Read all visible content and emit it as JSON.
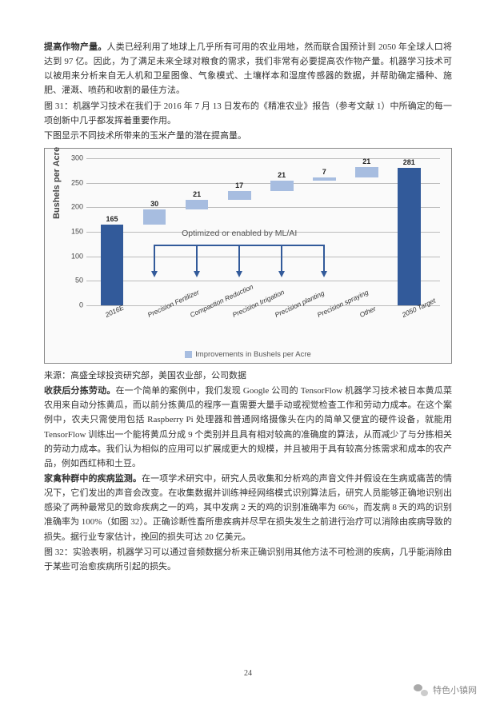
{
  "paragraphs": {
    "p1_bold": "提高作物产量。",
    "p1": "人类已经利用了地球上几乎所有可用的农业用地，然而联合国预计到 2050 年全球人口将达到 97 亿。因此，为了满足未来全球对粮食的需求，我们非常有必要提高农作物产量。机器学习技术可以被用来分析来自无人机和卫星图像、气象模式、土壤样本和湿度传感器的数据，并帮助确定播种、施肥、灌溉、喷药和收割的最佳方法。",
    "p2": "图 31：机器学习技术在我们于 2016 年 7 月 13 日发布的《精准农业》报告（参考文献 1）中所确定的每一项创新中几乎都发挥着重要作用。",
    "p3": "下图显示不同技术所带来的玉米产量的潜在提高量。",
    "source": "来源：高盛全球投资研究部，美国农业部，公司数据",
    "p4_bold": "收获后分拣劳动。",
    "p4": "在一个简单的案例中，我们发现 Google 公司的 TensorFlow 机器学习技术被日本黄瓜菜农用来自动分拣黄瓜，而以前分拣黄瓜的程序一直需要大量手动或视觉检查工作和劳动力成本。在这个案例中，农夫只需使用包括 Raspberry Pi 处理器和普通网络摄像头在内的简单又便宜的硬件设备，就能用 TensorFlow 训练出一个能将黄瓜分成 9 个类别并且具有相对较高的准确度的算法，从而减少了与分拣相关的劳动力成本。我们认为相似的应用可以扩展成更大的规模，并且被用于具有较高分拣需求和成本的农产品，例如西红柿和土豆。",
    "p5_bold": "家禽种群中的疾病监测。",
    "p5": "在一项学术研究中，研究人员收集和分析鸡的声音文件并假设在生病或痛苦的情况下，它们发出的声音会改变。在收集数据并训练神经网络模式识别算法后，研究人员能够正确地识别出感染了两种最常见的致命疾病之一的鸡，其中发病 2 天的鸡的识别准确率为 66%，而发病 8 天的鸡的识别准确率为 100%（如图 32）。正确诊断性畜所患疾病并尽早在损失发生之前进行治疗可以消除由疾病导致的损失。据行业专家估计，挽回的损失可达 20 亿美元。",
    "p6": "图 32：实验表明，机器学习可以通过音频数据分析来正确识别用其他方法不可检测的疾病，几乎能消除由于某些可治愈疾病所引起的损失。"
  },
  "chart": {
    "type": "bar",
    "yaxis_title": "Bushels per Acre",
    "ylim": [
      0,
      300
    ],
    "ytick_step": 50,
    "yticks": [
      0,
      50,
      100,
      150,
      200,
      250,
      300
    ],
    "grid_color": "#bbbbbb",
    "background": "#fafafa",
    "opt_label": "Optimized or enabled by ML/AI",
    "legend": "Improvements in Bushels per Acre",
    "legend_color": "#a7bde0",
    "bars": [
      {
        "label": "2016E",
        "value": 165,
        "base": 0,
        "color": "#325a9a",
        "xlabel": "2016E"
      },
      {
        "label": "Precision Fertilizer",
        "value": 30,
        "base": 165,
        "color": "#a7bde0",
        "xlabel": "Precision Fertilizer"
      },
      {
        "label": "Compaction Reduction",
        "value": 21,
        "base": 195,
        "color": "#a7bde0",
        "xlabel": "Compaction Reduction"
      },
      {
        "label": "Precision Irrigation",
        "value": 17,
        "base": 216,
        "color": "#a7bde0",
        "xlabel": "Precision Irrigation"
      },
      {
        "label": "Precision planting",
        "value": 21,
        "base": 233,
        "color": "#a7bde0",
        "xlabel": "Precision planting"
      },
      {
        "label": "Precision spraying",
        "value": 7,
        "base": 254,
        "color": "#a7bde0",
        "xlabel": "Precision spraying"
      },
      {
        "label": "Other",
        "value": 21,
        "base": 261,
        "color": "#a7bde0",
        "xlabel": "Other"
      },
      {
        "label": "2050 Target",
        "value": 281,
        "base": 0,
        "color": "#325a9a",
        "xlabel": "2050 Target"
      }
    ],
    "bar_width_pct": 6.5,
    "bar_gap_pct": 12.0
  },
  "page_number": "24",
  "footer_text": "特色小镇网"
}
